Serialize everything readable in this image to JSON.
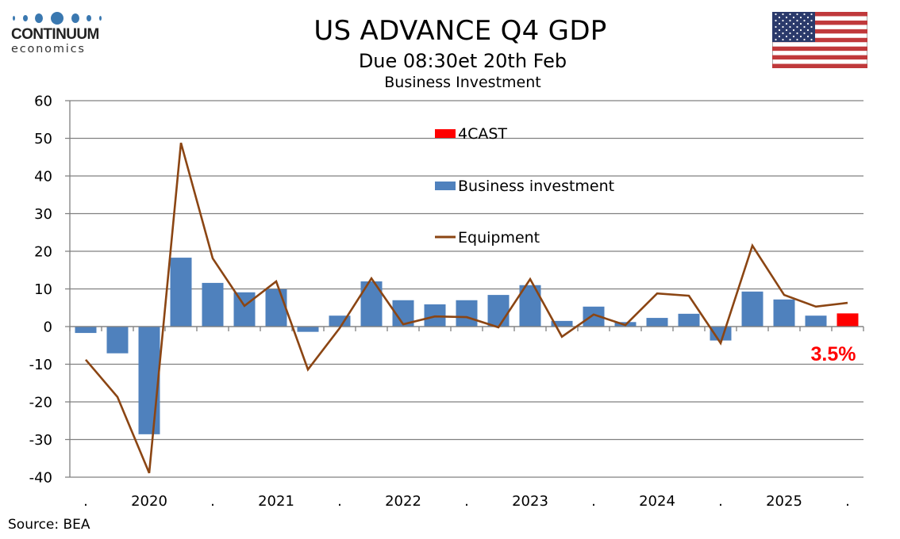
{
  "header": {
    "logo_top": "CONTINUUM",
    "logo_bottom": "economics",
    "title": "US ADVANCE Q4  GDP",
    "subtitle": "Due 08:30et 20th Feb",
    "subtitle2": "Business Investment",
    "flag_icon": "us-flag-icon"
  },
  "footer": {
    "source": "Source: BEA"
  },
  "colors": {
    "bar": "#4f81bd",
    "forecast": "#ff0000",
    "line": "#8b4513",
    "grid": "#808080",
    "logo_blue": "#3a78b0"
  },
  "chart_data": {
    "type": "bar",
    "title": "Business Investment",
    "xlabel": "",
    "ylabel": "",
    "ylim": [
      -40,
      60
    ],
    "yticks": [
      60,
      50,
      40,
      30,
      20,
      10,
      0,
      -10,
      -20,
      -30,
      -40
    ],
    "grid": true,
    "legend_position": "top-center",
    "categories": [
      "2019Q4",
      "2020Q1",
      "2020Q2",
      "2020Q3",
      "2020Q4",
      "2021Q1",
      "2021Q2",
      "2021Q3",
      "2021Q4",
      "2022Q1",
      "2022Q2",
      "2022Q3",
      "2022Q4",
      "2023Q1",
      "2023Q2",
      "2023Q3",
      "2023Q4",
      "2024Q1",
      "2024Q2",
      "2024Q3",
      "2024Q4",
      "2025Q1",
      "2025Q2",
      "2025Q3",
      "2025Q4"
    ],
    "x_tick_labels": [
      ".",
      "2020",
      ".",
      "2021",
      ".",
      "2022",
      ".",
      "2023",
      ".",
      "2024",
      ".",
      "2025",
      "."
    ],
    "series": [
      {
        "name": "4CAST",
        "type": "bar",
        "color": "#ff0000",
        "values": [
          null,
          null,
          null,
          null,
          null,
          null,
          null,
          null,
          null,
          null,
          null,
          null,
          null,
          null,
          null,
          null,
          null,
          null,
          null,
          null,
          null,
          null,
          null,
          null,
          3.5
        ]
      },
      {
        "name": "Business investment",
        "type": "bar",
        "color": "#4f81bd",
        "values": [
          -1.7,
          -7.1,
          -28.6,
          18.3,
          11.6,
          9.1,
          9.9,
          -1.4,
          2.9,
          12.0,
          7.0,
          5.9,
          7.0,
          8.4,
          11.0,
          1.5,
          5.3,
          1.2,
          2.3,
          3.4,
          -3.7,
          9.3,
          7.2,
          2.9,
          null
        ]
      },
      {
        "name": "Equipment",
        "type": "line",
        "color": "#8b4513",
        "values": [
          -8.8,
          -18.7,
          -38.9,
          48.8,
          18.1,
          5.5,
          12.0,
          -11.4,
          -0.4,
          12.8,
          0.6,
          2.7,
          2.5,
          -0.2,
          12.6,
          -2.7,
          3.2,
          0.4,
          8.8,
          8.2,
          -4.4,
          21.5,
          8.4,
          5.3,
          6.3
        ]
      }
    ],
    "annotations": [
      {
        "text": "3.5%",
        "category": "2025Q4",
        "color": "#ff0000"
      }
    ]
  }
}
